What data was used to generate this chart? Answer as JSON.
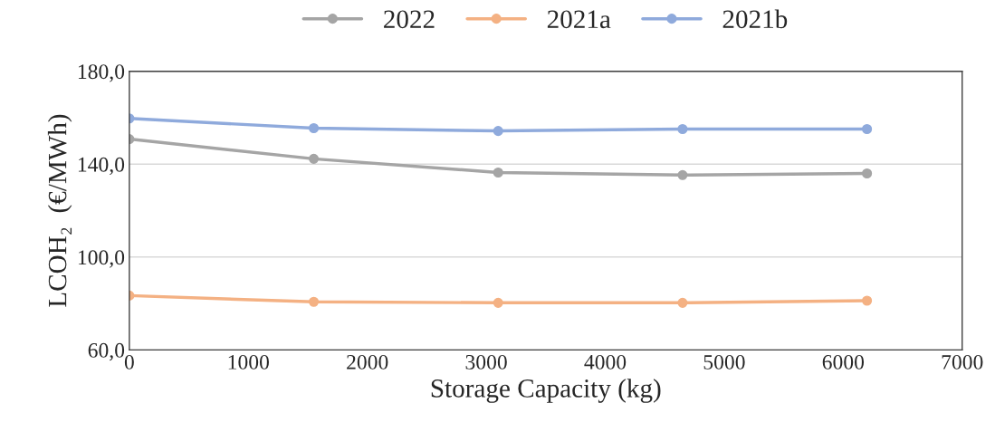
{
  "chart_data": {
    "type": "line",
    "xlabel": "Storage Capacity (kg)",
    "ylabel": "LCOH₂  (€/MWh)",
    "x": [
      0,
      1550,
      3100,
      4650,
      6200
    ],
    "series": [
      {
        "name": "2022",
        "color": "#a5a5a5",
        "values": [
          150.8,
          142.3,
          136.4,
          135.3,
          136.0
        ]
      },
      {
        "name": "2021a",
        "color": "#f4b183",
        "values": [
          83.4,
          80.7,
          80.3,
          80.3,
          81.2
        ]
      },
      {
        "name": "2021b",
        "color": "#8faadc",
        "values": [
          159.7,
          155.5,
          154.3,
          155.1,
          155.1
        ]
      }
    ],
    "xlim": [
      0,
      7000
    ],
    "xticks": [
      0,
      1000,
      2000,
      3000,
      4000,
      5000,
      6000,
      7000
    ],
    "ylim": [
      60,
      180
    ],
    "yticks": [
      {
        "value": 60,
        "label": "60,0"
      },
      {
        "value": 100,
        "label": "100,0"
      },
      {
        "value": 140,
        "label": "140,0"
      },
      {
        "value": 180,
        "label": "180,0"
      }
    ],
    "grid": "y",
    "legend": "top",
    "marker": "circle",
    "line_style": "solid"
  }
}
